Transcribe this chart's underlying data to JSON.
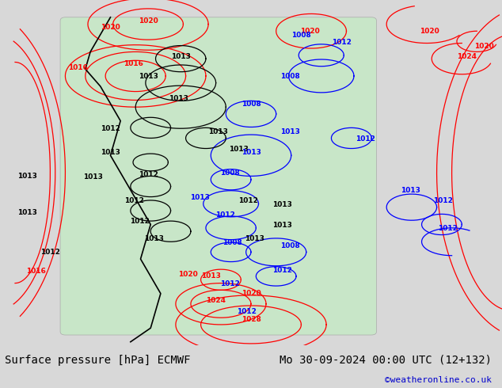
{
  "title_left": "Surface pressure [hPa] ECMWF",
  "title_right": "Mo 30-09-2024 00:00 UTC (12+132)",
  "watermark": "©weatheronline.co.uk",
  "watermark_color": "#0000cc",
  "bg_color_map": "#c8e6c8",
  "bg_color_outer": "#d8d8d8",
  "fig_width": 6.34,
  "fig_height": 4.9,
  "dpi": 100,
  "bottom_bar_height": 0.11,
  "title_fontsize": 10,
  "watermark_fontsize": 8
}
